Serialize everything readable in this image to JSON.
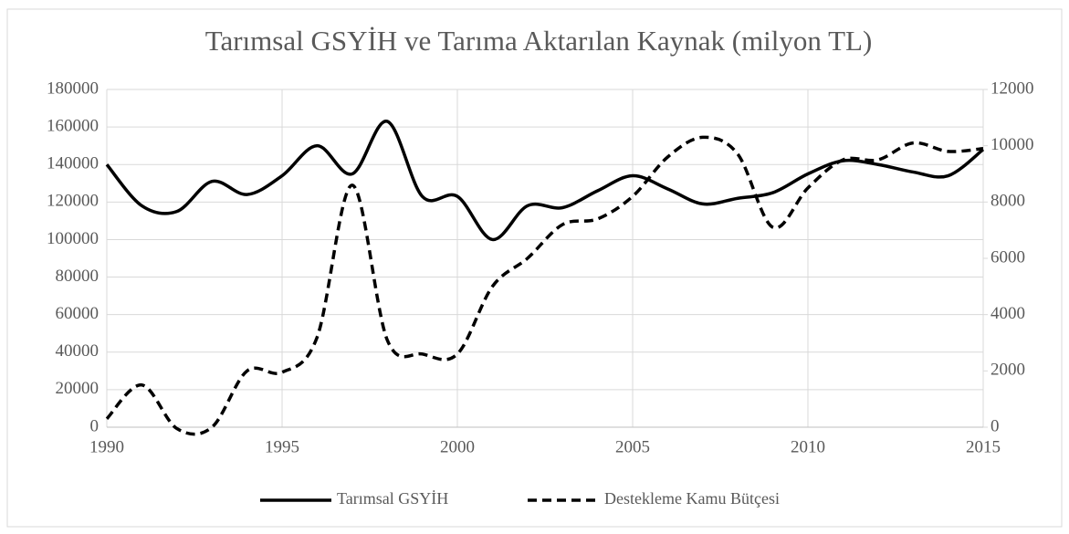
{
  "chart_data": {
    "type": "line",
    "title": "Tarımsal GSYİH ve Tarıma Aktarılan Kaynak (milyon TL)",
    "x": [
      1990,
      1991,
      1992,
      1993,
      1994,
      1995,
      1996,
      1997,
      1998,
      1999,
      2000,
      2001,
      2002,
      2003,
      2004,
      2005,
      2006,
      2007,
      2008,
      2009,
      2010,
      2011,
      2012,
      2013,
      2014,
      2015
    ],
    "series": [
      {
        "name": "Tarımsal GSYİH",
        "color": "#000000",
        "dash": "solid",
        "values": [
          140000,
          118000,
          115000,
          131000,
          124000,
          134000,
          150000,
          135000,
          163000,
          123000,
          123000,
          100000,
          118000,
          117000,
          126000,
          134000,
          127000,
          119000,
          122000,
          125000,
          135000,
          142000,
          140000,
          136000,
          134000,
          148000
        ]
      },
      {
        "name": "Destekleme Kamu Bütçesi",
        "color": "#000000",
        "dash": "dashed",
        "axis": "y2",
        "values": [
          300,
          1500,
          -50,
          0,
          2000,
          1950,
          3200,
          8600,
          3100,
          2600,
          2600,
          5000,
          6000,
          7200,
          7400,
          8200,
          9600,
          10300,
          9700,
          7100,
          8500,
          9500,
          9500,
          10100,
          9800,
          9900
        ]
      }
    ],
    "xlim": [
      1990,
      2015
    ],
    "xticks": [
      1990,
      1995,
      2000,
      2005,
      2010,
      2015
    ],
    "ylim": [
      0,
      180000
    ],
    "yticks": [
      0,
      20000,
      40000,
      60000,
      80000,
      100000,
      120000,
      140000,
      160000,
      180000
    ],
    "y2lim": [
      0,
      12000
    ],
    "y2ticks": [
      0,
      2000,
      4000,
      6000,
      8000,
      10000,
      12000
    ],
    "grid": true,
    "legend": "bottom"
  }
}
